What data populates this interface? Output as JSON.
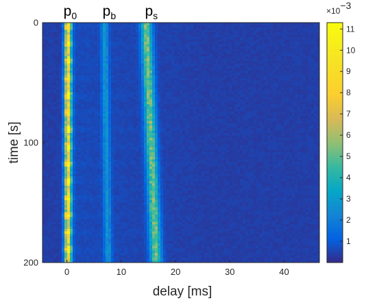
{
  "chart_data": {
    "type": "heatmap",
    "xlabel": "delay [ms]",
    "ylabel": "time [s]",
    "xlim": [
      -4.5,
      46.5
    ],
    "ylim": [
      0,
      200
    ],
    "y_reversed": true,
    "xticks": [
      0,
      10,
      20,
      30,
      40
    ],
    "yticks": [
      0,
      100,
      200
    ],
    "colormap": "parula",
    "colorbar": {
      "range": [
        0,
        0.0113
      ],
      "ticks": [
        1,
        2,
        3,
        4,
        5,
        6,
        7,
        8,
        9,
        10,
        11
      ],
      "multiplier": "×10",
      "exponent": "−3"
    },
    "annotations": [
      {
        "base": "p",
        "sub": "0",
        "x": 0
      },
      {
        "base": "p",
        "sub": "b",
        "x": 7.2
      },
      {
        "base": "p",
        "sub": "s",
        "x": 15
      }
    ],
    "series": [
      {
        "label_index": 0,
        "delay_start": 0.2,
        "delay_end": 0.2,
        "peak": 0.0096,
        "width": 0.45
      },
      {
        "label_index": 1,
        "delay_start": 6.9,
        "delay_end": 7.6,
        "peak": 0.0022,
        "width": 0.45
      },
      {
        "label_index": 2,
        "delay_start": 14.6,
        "delay_end": 16.4,
        "peak": 0.0048,
        "width": 0.7
      }
    ],
    "background_level": 0.0004
  }
}
